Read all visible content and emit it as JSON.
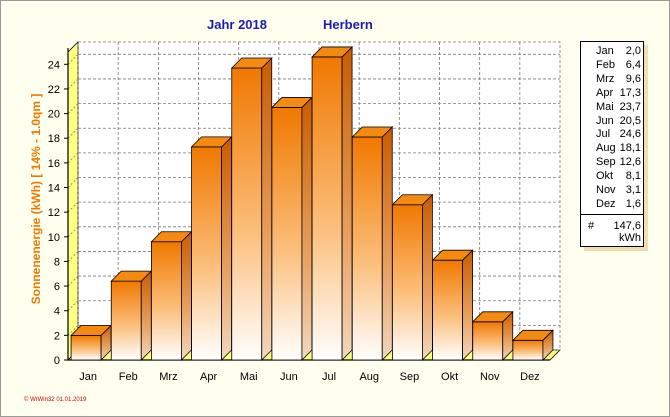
{
  "header": {
    "year_label": "Jahr  2018",
    "location": "Herbern"
  },
  "footer": "© WrWin32  01.01.2019",
  "legend": {
    "total_symbol": "#",
    "total_value": "147,6",
    "total_unit": "kWh"
  },
  "chart_data": {
    "type": "bar",
    "title": "",
    "xlabel": "",
    "ylabel": "Sonnenenergie   (kWh)    [ 14% - 1.0qm ]",
    "categories": [
      "Jan",
      "Feb",
      "Mrz",
      "Apr",
      "Mai",
      "Jun",
      "Jul",
      "Aug",
      "Sep",
      "Okt",
      "Nov",
      "Dez"
    ],
    "values": [
      2.0,
      6.4,
      9.6,
      17.3,
      23.7,
      20.5,
      24.6,
      18.1,
      12.6,
      8.1,
      3.1,
      1.6
    ],
    "value_labels": [
      "2,0",
      "6,4",
      "9,6",
      "17,3",
      "23,7",
      "20,5",
      "24,6",
      "18,1",
      "12,6",
      "8,1",
      "3,1",
      "1,6"
    ],
    "ylim": [
      0,
      25
    ],
    "yticks": [
      0,
      2,
      4,
      6,
      8,
      10,
      12,
      14,
      16,
      18,
      20,
      22,
      24
    ],
    "grid": true,
    "bar_color": "#f07800",
    "floor_color": "#ffff80"
  }
}
